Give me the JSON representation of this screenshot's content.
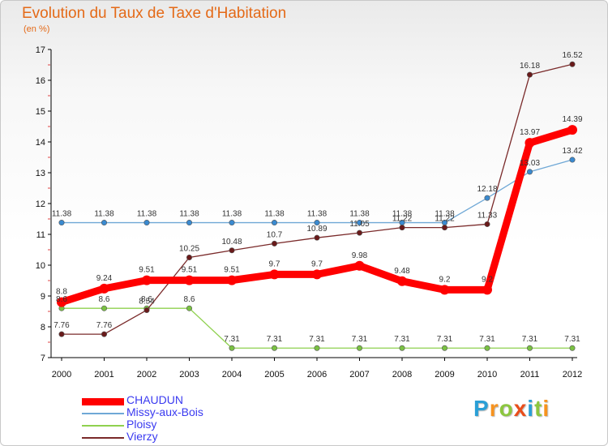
{
  "chart_data": {
    "type": "line",
    "title": "Evolution du Taux de Taxe d'Habitation",
    "unit_label": "(en %)",
    "categories": [
      "2000",
      "2001",
      "2002",
      "2003",
      "2004",
      "2005",
      "2006",
      "2007",
      "2008",
      "2009",
      "2010",
      "2011",
      "2012"
    ],
    "ylim": [
      7,
      17
    ],
    "yticks": [
      7,
      8,
      9,
      10,
      11,
      12,
      13,
      14,
      15,
      16,
      17
    ],
    "grid": false,
    "legend_position": "bottom-left",
    "series": [
      {
        "name": "Missy-aux-Bois",
        "color": "#6fa8d6",
        "marker": "#3a8ad0",
        "values": [
          11.38,
          11.38,
          11.38,
          11.38,
          11.38,
          11.38,
          11.38,
          11.38,
          11.38,
          11.38,
          12.18,
          13.03,
          13.42
        ]
      },
      {
        "name": "Ploisy",
        "color": "#8fd14f",
        "marker": "#7ac143",
        "values": [
          8.6,
          8.6,
          8.6,
          8.6,
          7.31,
          7.31,
          7.31,
          7.31,
          7.31,
          7.31,
          7.31,
          7.31,
          7.31
        ]
      },
      {
        "name": "Vierzy",
        "color": "#7a2a2a",
        "marker": "#6a1a1a",
        "values": [
          7.76,
          7.76,
          8.54,
          10.25,
          10.48,
          10.7,
          10.89,
          11.05,
          11.22,
          11.22,
          11.33,
          16.18,
          16.52
        ]
      },
      {
        "name": "CHAUDUN",
        "color": "#ff0000",
        "marker": "#ff0000",
        "values": [
          8.8,
          9.24,
          9.51,
          9.51,
          9.51,
          9.7,
          9.7,
          9.98,
          9.48,
          9.2,
          9.2,
          13.97,
          14.39
        ]
      }
    ]
  },
  "legend": [
    {
      "name": "CHAUDUN",
      "color": "#ff0000"
    },
    {
      "name": "Missy-aux-Bois",
      "color": "#6fa8d6"
    },
    {
      "name": "Ploisy",
      "color": "#8fd14f"
    },
    {
      "name": "Vierzy",
      "color": "#7a2a2a"
    }
  ],
  "watermark": {
    "text": "Proxiti",
    "letters": [
      {
        "ch": "P",
        "color": "#2a9fd6"
      },
      {
        "ch": "r",
        "color": "#f7931e"
      },
      {
        "ch": "o",
        "color": "#8cc63f"
      },
      {
        "ch": "x",
        "color": "#e94e1b"
      },
      {
        "ch": "i",
        "color": "#2a9fd6"
      },
      {
        "ch": "t",
        "color": "#8cc63f"
      },
      {
        "ch": "i",
        "color": "#f7931e"
      }
    ]
  }
}
